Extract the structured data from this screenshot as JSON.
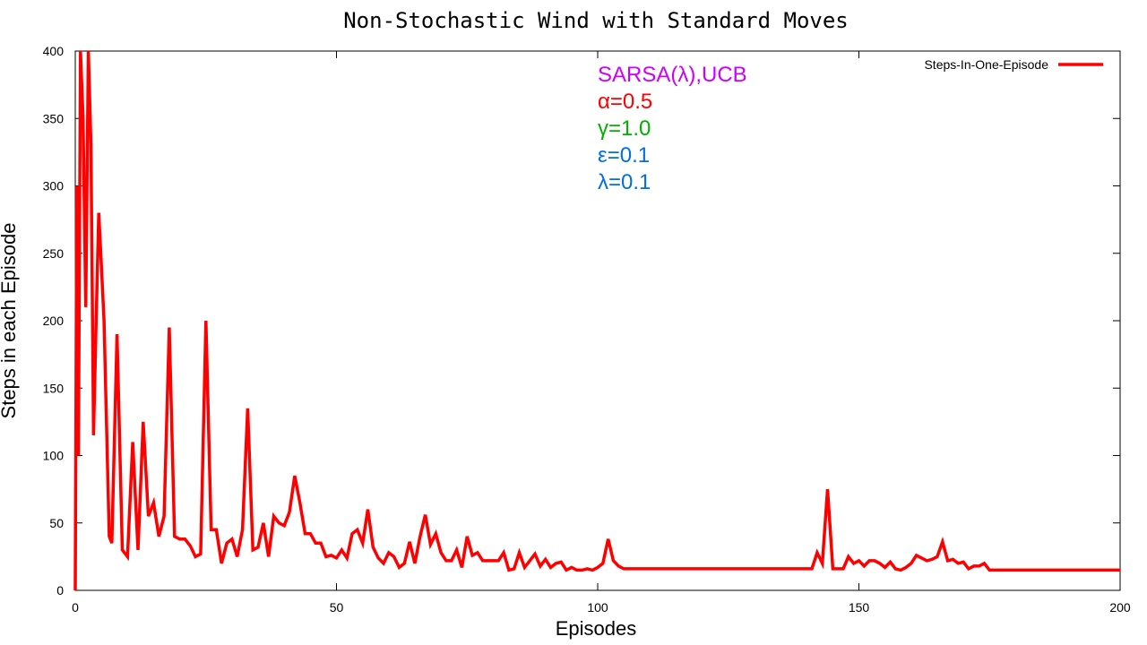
{
  "chart_data": {
    "type": "line",
    "title": "Non-Stochastic Wind with Standard Moves",
    "xlabel": "Episodes",
    "ylabel": "Steps in each Episode",
    "xlim": [
      0,
      200
    ],
    "ylim": [
      0,
      400
    ],
    "xticks": [
      0,
      50,
      100,
      150,
      200
    ],
    "yticks": [
      0,
      50,
      100,
      150,
      200,
      250,
      300,
      350,
      400
    ],
    "grid": false,
    "legend_position": "top-right",
    "series": [
      {
        "name": "Steps-In-One-Episode",
        "color": "#ff0000",
        "x": [
          0,
          0.3,
          0.6,
          1,
          1.5,
          2,
          2.5,
          3,
          3.5,
          4,
          4.5,
          5,
          5.5,
          6,
          6.5,
          7,
          8,
          9,
          10,
          11,
          12,
          13,
          14,
          15,
          16,
          17,
          18,
          19,
          20,
          21,
          22,
          23,
          24,
          25,
          26,
          27,
          28,
          29,
          30,
          31,
          32,
          33,
          34,
          35,
          36,
          37,
          38,
          39,
          40,
          41,
          42,
          43,
          44,
          45,
          46,
          47,
          48,
          49,
          50,
          51,
          52,
          53,
          54,
          55,
          56,
          57,
          58,
          59,
          60,
          61,
          62,
          63,
          64,
          65,
          66,
          67,
          68,
          69,
          70,
          71,
          72,
          73,
          74,
          75,
          76,
          77,
          78,
          79,
          80,
          81,
          82,
          83,
          84,
          85,
          86,
          87,
          88,
          89,
          90,
          91,
          92,
          93,
          94,
          95,
          96,
          97,
          98,
          99,
          100,
          101,
          102,
          103,
          104,
          105,
          106,
          110,
          120,
          130,
          140,
          141,
          142,
          143,
          144,
          145,
          146,
          147,
          148,
          149,
          150,
          151,
          152,
          153,
          154,
          155,
          156,
          157,
          158,
          159,
          160,
          161,
          162,
          163,
          164,
          165,
          166,
          167,
          168,
          169,
          170,
          171,
          172,
          173,
          174,
          175,
          176,
          180,
          190,
          200
        ],
        "values": [
          0,
          300,
          100,
          400,
          350,
          210,
          400,
          330,
          115,
          200,
          280,
          240,
          200,
          120,
          40,
          35,
          190,
          30,
          25,
          110,
          30,
          125,
          55,
          65,
          40,
          55,
          195,
          40,
          38,
          38,
          33,
          25,
          27,
          200,
          45,
          45,
          20,
          35,
          38,
          25,
          45,
          135,
          30,
          32,
          50,
          25,
          55,
          50,
          48,
          58,
          85,
          65,
          42,
          42,
          35,
          35,
          25,
          26,
          24,
          30,
          24,
          42,
          45,
          35,
          60,
          32,
          24,
          20,
          28,
          25,
          17,
          20,
          36,
          20,
          40,
          56,
          34,
          42,
          28,
          22,
          22,
          30,
          17,
          40,
          26,
          28,
          22,
          22,
          22,
          22,
          28,
          15,
          16,
          28,
          17,
          22,
          27,
          18,
          23,
          17,
          20,
          21,
          15,
          17,
          15,
          15,
          16,
          15,
          17,
          20,
          38,
          22,
          18,
          16,
          16,
          16,
          16,
          16,
          16,
          16,
          28,
          20,
          75,
          16,
          16,
          16,
          25,
          20,
          22,
          18,
          22,
          22,
          20,
          17,
          21,
          16,
          15,
          17,
          20,
          26,
          24,
          22,
          23,
          25,
          36,
          22,
          23,
          20,
          21,
          16,
          18,
          18,
          20,
          15,
          15,
          15,
          15,
          15
        ]
      }
    ],
    "annotations": [
      {
        "text": "SARSA(λ),UCB",
        "color": "#cc00ff"
      },
      {
        "text": "α=0.5",
        "color": "#ff0000"
      },
      {
        "text": "γ=1.0",
        "color": "#00b000"
      },
      {
        "text": "ε=0.1",
        "color": "#0070e0"
      },
      {
        "text": "λ=0.1",
        "color": "#0070e0"
      }
    ]
  }
}
